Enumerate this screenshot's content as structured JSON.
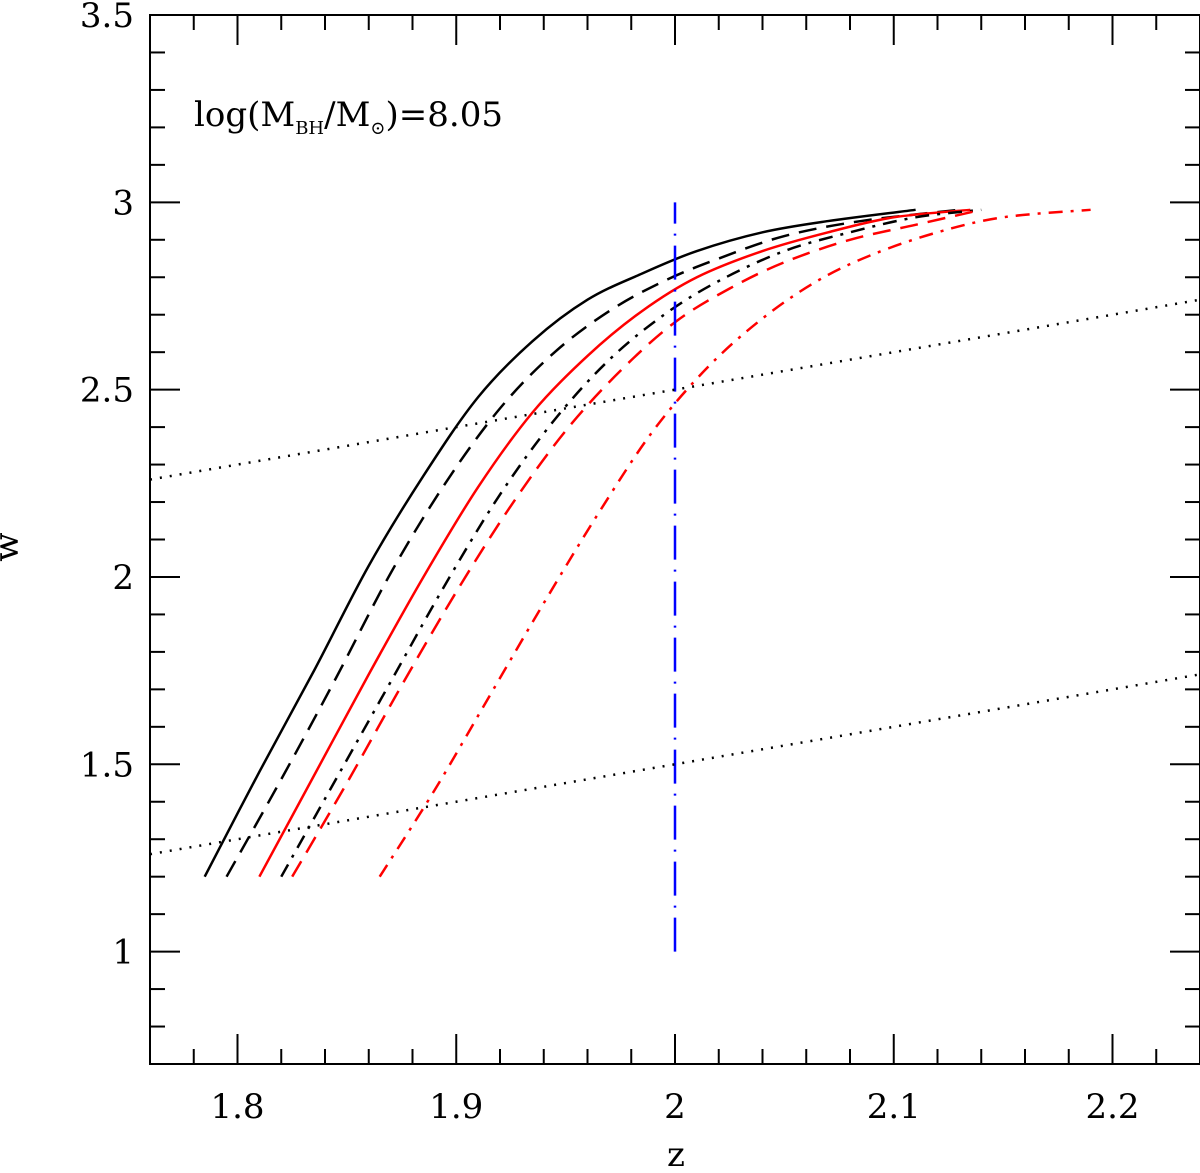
{
  "chart_data": {
    "type": "line",
    "title": "",
    "xlabel": "z",
    "ylabel": "w",
    "xlim": [
      1.76,
      2.24
    ],
    "ylim": [
      0.7,
      3.5
    ],
    "x_ticks_major": [
      1.8,
      1.9,
      2.0,
      2.1,
      2.2
    ],
    "x_tick_labels": [
      "1.8",
      "1.9",
      "2",
      "2.1",
      "2.2"
    ],
    "y_ticks_major": [
      1.0,
      1.5,
      2.0,
      2.5,
      3.0,
      3.5
    ],
    "y_tick_labels": [
      "1",
      "1.5",
      "2",
      "2.5",
      "3",
      "3.5"
    ],
    "x_minor_step": 0.02,
    "y_minor_step": 0.1,
    "annotation": {
      "prefix": "log(M",
      "sub1": "BH",
      "mid": "/M",
      "sub2": "⊙",
      "suffix": ")=8.05"
    },
    "series": [
      {
        "name": "black-solid",
        "color": "#000000",
        "dash": "solid",
        "points": [
          [
            1.785,
            1.2
          ],
          [
            1.81,
            1.48
          ],
          [
            1.835,
            1.75
          ],
          [
            1.86,
            2.03
          ],
          [
            1.885,
            2.27
          ],
          [
            1.91,
            2.48
          ],
          [
            1.935,
            2.63
          ],
          [
            1.96,
            2.74
          ],
          [
            1.985,
            2.81
          ],
          [
            2.01,
            2.87
          ],
          [
            2.04,
            2.92
          ],
          [
            2.07,
            2.95
          ],
          [
            2.11,
            2.98
          ]
        ]
      },
      {
        "name": "black-dashed",
        "color": "#000000",
        "dash": "long-dash",
        "points": [
          [
            1.795,
            1.2
          ],
          [
            1.82,
            1.46
          ],
          [
            1.845,
            1.73
          ],
          [
            1.87,
            2.01
          ],
          [
            1.895,
            2.25
          ],
          [
            1.92,
            2.45
          ],
          [
            1.945,
            2.6
          ],
          [
            1.97,
            2.71
          ],
          [
            1.995,
            2.79
          ],
          [
            2.02,
            2.85
          ],
          [
            2.05,
            2.91
          ],
          [
            2.085,
            2.95
          ],
          [
            2.13,
            2.98
          ]
        ]
      },
      {
        "name": "red-solid",
        "color": "#ff0000",
        "dash": "solid",
        "points": [
          [
            1.81,
            1.2
          ],
          [
            1.835,
            1.47
          ],
          [
            1.86,
            1.74
          ],
          [
            1.885,
            2.0
          ],
          [
            1.91,
            2.24
          ],
          [
            1.935,
            2.44
          ],
          [
            1.96,
            2.59
          ],
          [
            1.985,
            2.71
          ],
          [
            2.01,
            2.8
          ],
          [
            2.04,
            2.87
          ],
          [
            2.07,
            2.92
          ],
          [
            2.1,
            2.96
          ],
          [
            2.135,
            2.98
          ]
        ]
      },
      {
        "name": "black-dashdot",
        "color": "#000000",
        "dash": "dash-dot",
        "points": [
          [
            1.82,
            1.2
          ],
          [
            1.845,
            1.46
          ],
          [
            1.87,
            1.72
          ],
          [
            1.895,
            1.98
          ],
          [
            1.92,
            2.22
          ],
          [
            1.945,
            2.42
          ],
          [
            1.97,
            2.58
          ],
          [
            1.995,
            2.7
          ],
          [
            2.02,
            2.79
          ],
          [
            2.05,
            2.87
          ],
          [
            2.08,
            2.92
          ],
          [
            2.11,
            2.96
          ],
          [
            2.14,
            2.98
          ]
        ]
      },
      {
        "name": "red-dashed",
        "color": "#ff0000",
        "dash": "long-dash",
        "points": [
          [
            1.825,
            1.2
          ],
          [
            1.85,
            1.45
          ],
          [
            1.875,
            1.71
          ],
          [
            1.9,
            1.96
          ],
          [
            1.925,
            2.19
          ],
          [
            1.95,
            2.39
          ],
          [
            1.975,
            2.55
          ],
          [
            2.0,
            2.68
          ],
          [
            2.025,
            2.77
          ],
          [
            2.05,
            2.84
          ],
          [
            2.08,
            2.9
          ],
          [
            2.11,
            2.94
          ],
          [
            2.14,
            2.98
          ]
        ]
      },
      {
        "name": "red-dashdot",
        "color": "#ff0000",
        "dash": "dash-dot",
        "points": [
          [
            1.865,
            1.2
          ],
          [
            1.89,
            1.43
          ],
          [
            1.915,
            1.68
          ],
          [
            1.94,
            1.93
          ],
          [
            1.965,
            2.17
          ],
          [
            1.99,
            2.39
          ],
          [
            2.015,
            2.56
          ],
          [
            2.04,
            2.69
          ],
          [
            2.065,
            2.79
          ],
          [
            2.09,
            2.86
          ],
          [
            2.12,
            2.92
          ],
          [
            2.15,
            2.96
          ],
          [
            2.19,
            2.98
          ]
        ]
      },
      {
        "name": "blue-vertical-long-dash",
        "color": "#0000ff",
        "dash": "very-long-dash",
        "points": [
          [
            2.0,
            1.0
          ],
          [
            2.0,
            3.0
          ]
        ]
      },
      {
        "name": "dotted-upper",
        "color": "#000000",
        "dash": "dotted",
        "points": [
          [
            1.76,
            2.26
          ],
          [
            2.24,
            2.74
          ]
        ]
      },
      {
        "name": "dotted-lower",
        "color": "#000000",
        "dash": "dotted",
        "points": [
          [
            1.76,
            1.26
          ],
          [
            2.24,
            1.74
          ]
        ]
      }
    ]
  }
}
